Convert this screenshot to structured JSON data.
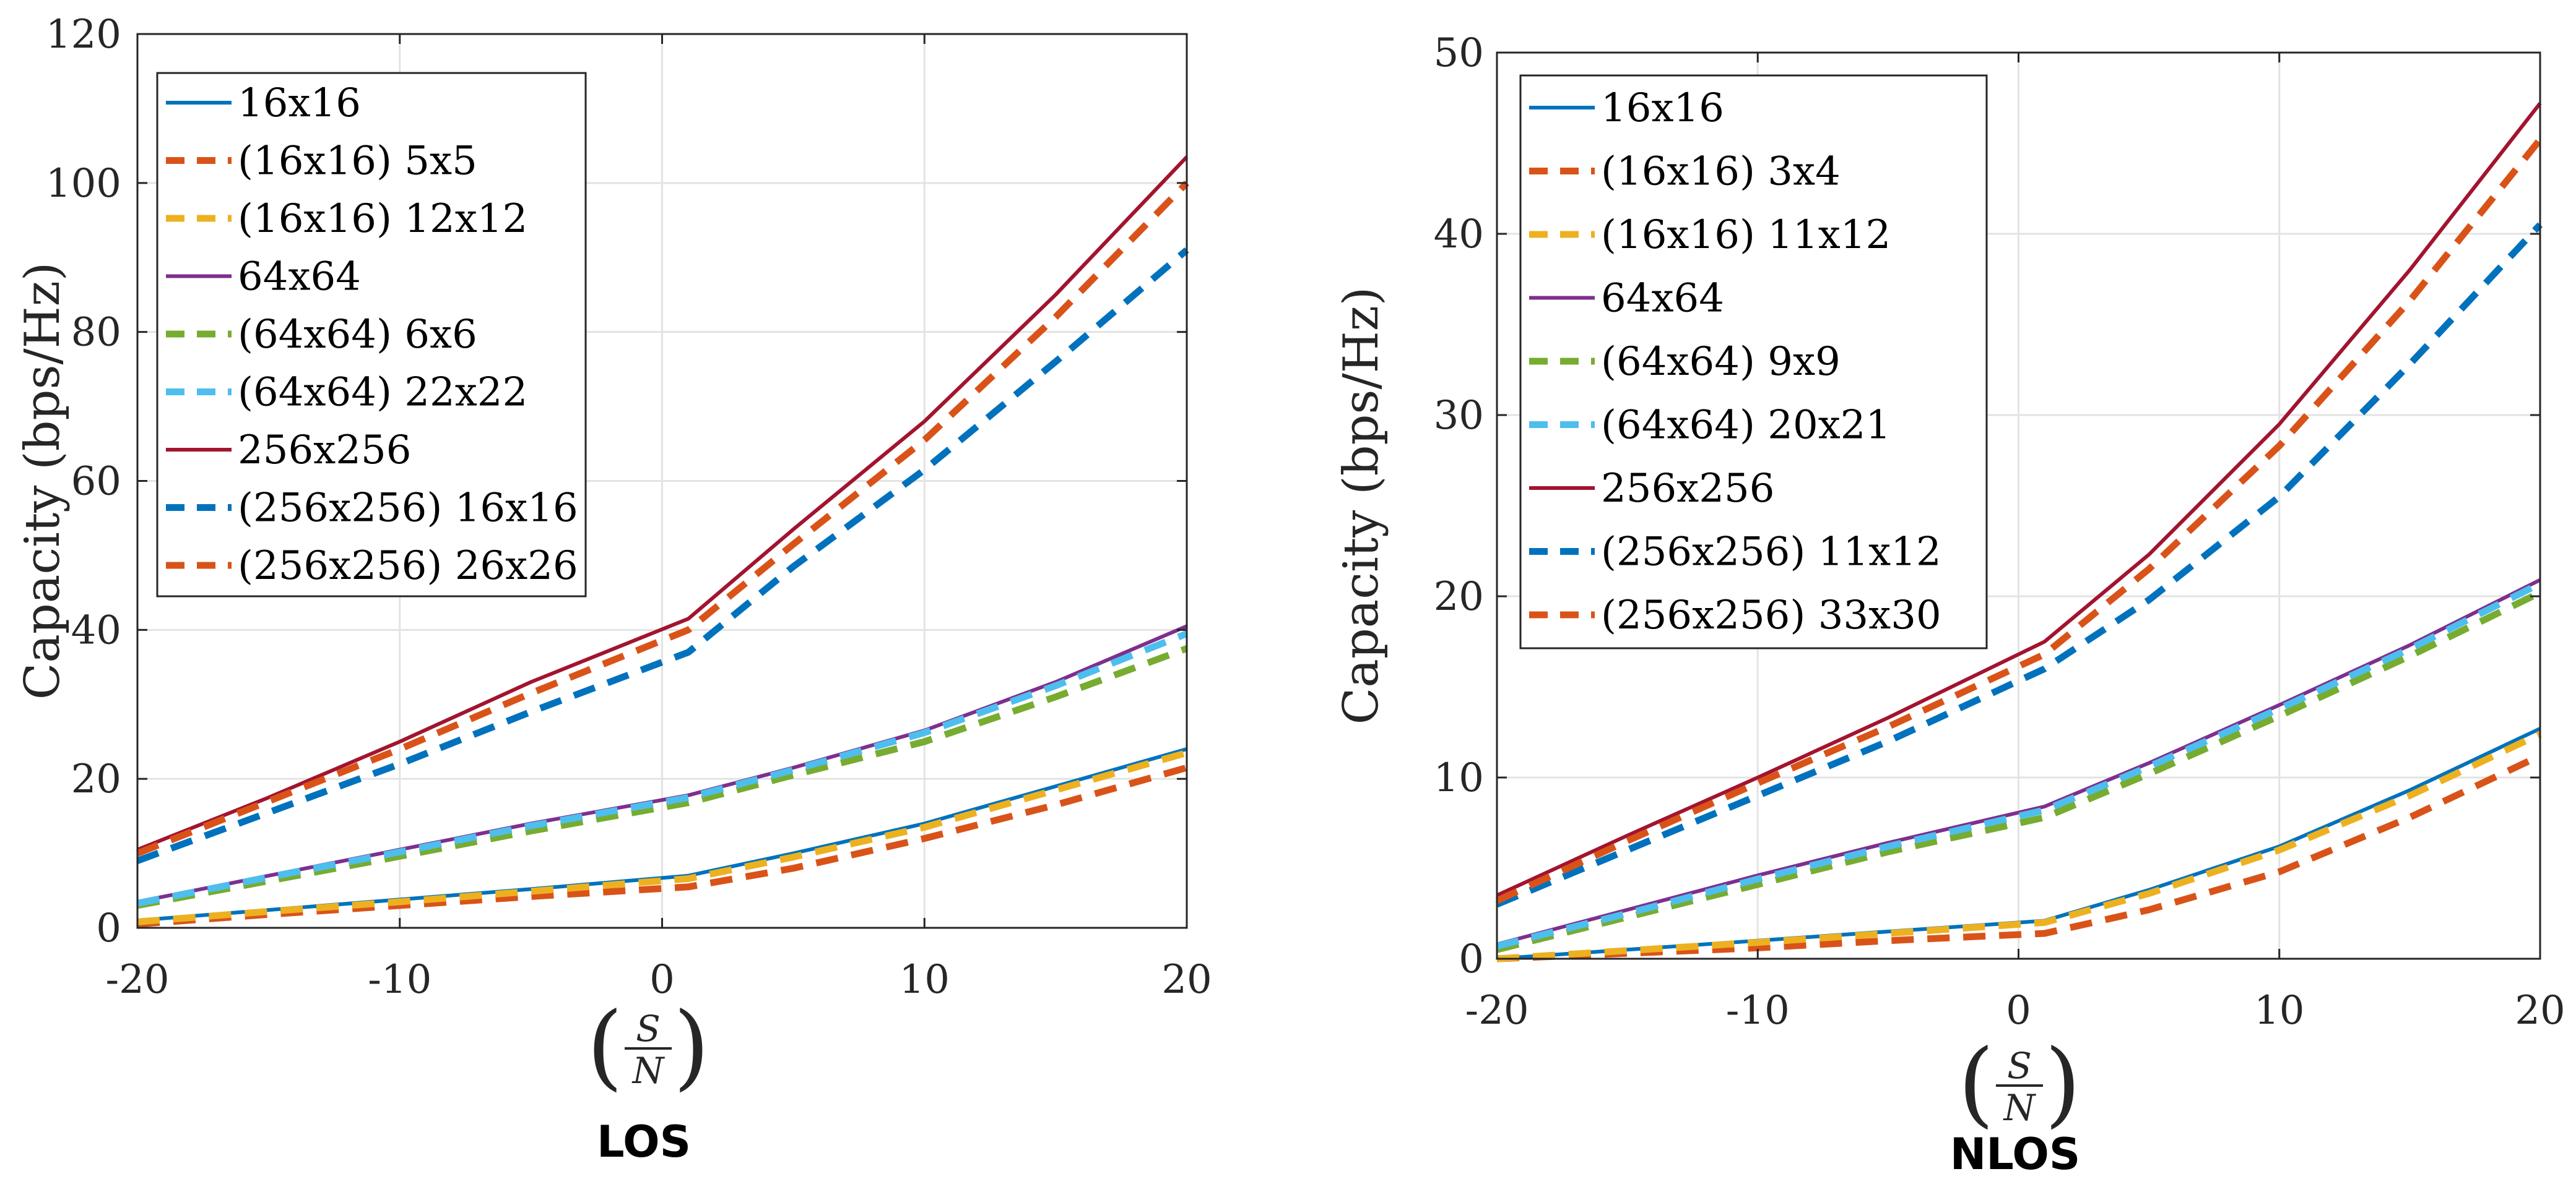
{
  "chart_data": [
    {
      "type": "line",
      "panel_label": "LOS",
      "xlabel_frac": {
        "num": "S",
        "den": "N"
      },
      "ylabel": "Capacity (bps/Hz)",
      "xlim": [
        -20,
        20
      ],
      "ylim": [
        0,
        120
      ],
      "xticks": [
        -20,
        -10,
        0,
        10,
        20
      ],
      "yticks": [
        0,
        20,
        40,
        60,
        80,
        100,
        120
      ],
      "x": [
        -20,
        -15,
        -10,
        -5,
        1,
        5,
        10,
        15,
        20
      ],
      "grid": true,
      "legend_position": "top-left",
      "series": [
        {
          "name": "16x16",
          "color": "#0072BD",
          "style": "solid",
          "values": [
            1,
            2.4,
            3.8,
            5.2,
            7,
            10,
            14,
            19,
            24
          ]
        },
        {
          "name": "(16x16) 5x5",
          "color": "#D95319",
          "style": "dashed",
          "values": [
            0.5,
            1.8,
            3,
            4.2,
            5.5,
            8,
            12,
            16.5,
            21.5
          ]
        },
        {
          "name": "(16x16) 12x12",
          "color": "#EDB120",
          "style": "dashed",
          "values": [
            0.8,
            2.2,
            3.5,
            4.9,
            6.6,
            9.5,
            13.5,
            18.5,
            23.5
          ]
        },
        {
          "name": "64x64",
          "color": "#7E2F8E",
          "style": "solid",
          "values": [
            3.5,
            7,
            10.5,
            14,
            17.8,
            21.5,
            26.5,
            33,
            40.5
          ]
        },
        {
          "name": "(64x64) 6x6",
          "color": "#77AC30",
          "style": "dashed",
          "values": [
            3,
            6.3,
            9.6,
            13,
            16.8,
            20.5,
            25,
            31,
            37.5
          ]
        },
        {
          "name": "(64x64) 22x22",
          "color": "#4DBEEE",
          "style": "dashed",
          "values": [
            3.3,
            6.8,
            10.2,
            13.7,
            17.5,
            21.2,
            26.2,
            32.5,
            39.5
          ]
        },
        {
          "name": "256x256",
          "color": "#A2142F",
          "style": "solid",
          "values": [
            10.5,
            17.5,
            25,
            33,
            41.5,
            53.5,
            68,
            85,
            103.5
          ]
        },
        {
          "name": "(256x256) 16x16",
          "color": "#0072BD",
          "style": "dashed",
          "values": [
            9,
            15.5,
            22,
            29,
            37,
            48.5,
            61.5,
            76,
            91
          ]
        },
        {
          "name": "(256x256) 26x26",
          "color": "#D95319",
          "style": "dashed",
          "values": [
            10,
            17,
            24,
            31.5,
            40,
            51.5,
            65.5,
            82,
            100
          ]
        }
      ]
    },
    {
      "type": "line",
      "panel_label": "NLOS",
      "xlabel_frac": {
        "num": "S",
        "den": "N"
      },
      "ylabel": "Capacity (bps/Hz)",
      "xlim": [
        -20,
        20
      ],
      "ylim": [
        0,
        50
      ],
      "xticks": [
        -20,
        -10,
        0,
        10,
        20
      ],
      "yticks": [
        0,
        10,
        20,
        30,
        40,
        50
      ],
      "x": [
        -20,
        -15,
        -10,
        -5,
        1,
        5,
        10,
        15,
        20
      ],
      "grid": true,
      "legend_position": "top-left",
      "series": [
        {
          "name": "16x16",
          "color": "#0072BD",
          "style": "solid",
          "values": [
            0,
            0.5,
            1,
            1.5,
            2.1,
            3.8,
            6.2,
            9.3,
            12.7
          ]
        },
        {
          "name": "(16x16) 3x4",
          "color": "#D95319",
          "style": "dashed",
          "values": [
            0,
            0.3,
            0.6,
            1,
            1.4,
            2.7,
            4.8,
            7.8,
            11.2
          ]
        },
        {
          "name": "(16x16) 11x12",
          "color": "#EDB120",
          "style": "dashed",
          "values": [
            0,
            0.45,
            0.9,
            1.4,
            2,
            3.6,
            6,
            9,
            12.4
          ]
        },
        {
          "name": "64x64",
          "color": "#7E2F8E",
          "style": "solid",
          "values": [
            0.8,
            2.7,
            4.6,
            6.4,
            8.4,
            10.8,
            14,
            17.3,
            20.9
          ]
        },
        {
          "name": "(64x64) 9x9",
          "color": "#77AC30",
          "style": "dashed",
          "values": [
            0.5,
            2.3,
            4.1,
            5.9,
            7.8,
            10.2,
            13.4,
            16.7,
            20.2
          ]
        },
        {
          "name": "(64x64) 20x21",
          "color": "#4DBEEE",
          "style": "dashed",
          "values": [
            0.7,
            2.5,
            4.4,
            6.2,
            8.2,
            10.6,
            13.8,
            17.1,
            20.7
          ]
        },
        {
          "name": "256x256",
          "color": "#A2142F",
          "style": "solid",
          "values": [
            3.5,
            6.8,
            10,
            13.3,
            17.5,
            22.3,
            29.5,
            38,
            47.2
          ]
        },
        {
          "name": "(256x256) 11x12",
          "color": "#0072BD",
          "style": "dashed",
          "values": [
            3,
            6,
            9,
            12,
            16,
            19.8,
            25.5,
            32.8,
            40.5
          ]
        },
        {
          "name": "(256x256) 33x30",
          "color": "#D95319",
          "style": "dashed",
          "values": [
            3.2,
            6.5,
            9.7,
            12.8,
            16.8,
            21.5,
            28.3,
            36.3,
            45.2
          ]
        }
      ]
    }
  ]
}
